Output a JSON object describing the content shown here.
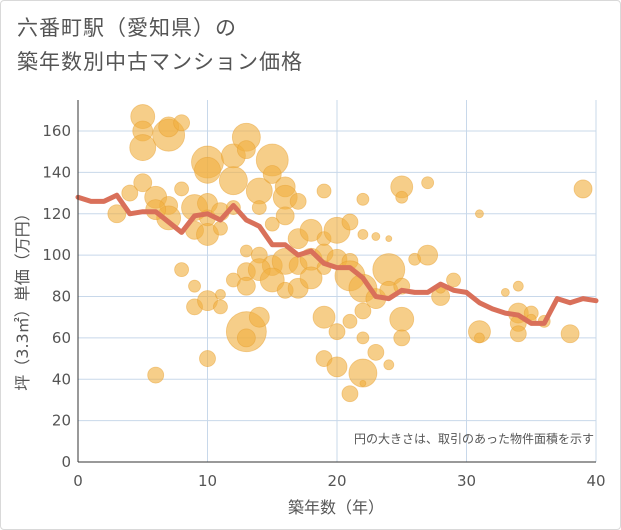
{
  "title_line1": "六番町駅（愛知県）の",
  "title_line2": "築年数別中古マンション価格",
  "chart_data": {
    "type": "scatter",
    "xlabel": "築年数（年）",
    "ylabel": "坪（3.3㎡）単価（万円）",
    "xlim": [
      0,
      40
    ],
    "ylim": [
      0,
      175
    ],
    "xticks": [
      "0",
      "10",
      "20",
      "30",
      "40"
    ],
    "yticks": [
      "0",
      "20",
      "40",
      "60",
      "80",
      "100",
      "120",
      "140",
      "160"
    ],
    "grid": true,
    "annotation": "円の大きさは、取引のあった物件面積を示す",
    "colors": {
      "bubble": "#f0b040",
      "line": "#d9705a",
      "grid": "#c8d8ea"
    },
    "bubbles": [
      [
        5,
        167,
        12
      ],
      [
        5,
        160,
        10
      ],
      [
        5,
        152,
        13
      ],
      [
        7,
        158,
        16
      ],
      [
        7,
        162,
        10
      ],
      [
        8,
        164,
        8
      ],
      [
        4,
        130,
        8
      ],
      [
        5,
        135,
        9
      ],
      [
        6,
        128,
        11
      ],
      [
        7,
        124,
        9
      ],
      [
        7,
        118,
        12
      ],
      [
        8,
        132,
        7
      ],
      [
        9,
        123,
        13
      ],
      [
        9,
        112,
        9
      ],
      [
        10,
        145,
        16
      ],
      [
        10,
        141,
        13
      ],
      [
        10,
        125,
        10
      ],
      [
        10,
        118,
        8
      ],
      [
        11,
        121,
        9
      ],
      [
        10,
        110,
        11
      ],
      [
        11,
        113,
        7
      ],
      [
        12,
        148,
        12
      ],
      [
        12,
        136,
        14
      ],
      [
        12,
        123,
        7
      ],
      [
        13,
        157,
        14
      ],
      [
        13,
        151,
        9
      ],
      [
        14,
        131,
        13
      ],
      [
        14,
        123,
        7
      ],
      [
        15,
        146,
        16
      ],
      [
        15,
        139,
        9
      ],
      [
        16,
        133,
        10
      ],
      [
        16,
        128,
        12
      ],
      [
        16,
        119,
        9
      ],
      [
        15,
        115,
        7
      ],
      [
        17,
        126,
        8
      ],
      [
        17,
        108,
        10
      ],
      [
        3,
        120,
        9
      ],
      [
        6,
        122,
        10
      ],
      [
        18,
        112,
        11
      ],
      [
        19,
        108,
        7
      ],
      [
        13,
        102,
        6
      ],
      [
        14,
        100,
        8
      ],
      [
        15,
        95,
        10
      ],
      [
        16,
        97,
        13
      ],
      [
        17,
        95,
        9
      ],
      [
        18,
        98,
        11
      ],
      [
        19,
        101,
        9
      ],
      [
        20,
        98,
        10
      ],
      [
        21,
        97,
        8
      ],
      [
        20,
        112,
        13
      ],
      [
        21,
        116,
        8
      ],
      [
        19,
        131,
        7
      ],
      [
        22,
        127,
        6
      ],
      [
        22,
        110,
        5
      ],
      [
        13,
        92,
        9
      ],
      [
        14,
        93,
        11
      ],
      [
        15,
        88,
        12
      ],
      [
        12,
        88,
        7
      ],
      [
        13,
        85,
        9
      ],
      [
        16,
        83,
        8
      ],
      [
        17,
        84,
        10
      ],
      [
        18,
        89,
        11
      ],
      [
        19,
        94,
        7
      ],
      [
        21,
        90,
        15
      ],
      [
        22,
        84,
        14
      ],
      [
        22,
        73,
        8
      ],
      [
        23,
        79,
        10
      ],
      [
        24,
        93,
        16
      ],
      [
        24,
        83,
        9
      ],
      [
        25,
        85,
        8
      ],
      [
        25,
        69,
        12
      ],
      [
        25,
        60,
        8
      ],
      [
        26,
        98,
        6
      ],
      [
        27,
        100,
        10
      ],
      [
        28,
        80,
        9
      ],
      [
        29,
        88,
        7
      ],
      [
        28,
        84,
        5
      ],
      [
        8,
        93,
        7
      ],
      [
        9,
        85,
        6
      ],
      [
        9,
        75,
        8
      ],
      [
        10,
        78,
        10
      ],
      [
        11,
        81,
        5
      ],
      [
        11,
        75,
        7
      ],
      [
        13,
        63,
        20
      ],
      [
        13,
        60,
        9
      ],
      [
        14,
        70,
        10
      ],
      [
        10,
        50,
        8
      ],
      [
        6,
        42,
        8
      ],
      [
        19,
        70,
        11
      ],
      [
        20,
        63,
        8
      ],
      [
        21,
        68,
        7
      ],
      [
        22,
        60,
        6
      ],
      [
        19,
        50,
        8
      ],
      [
        20,
        46,
        10
      ],
      [
        22,
        43,
        14
      ],
      [
        21,
        33,
        8
      ],
      [
        23,
        53,
        8
      ],
      [
        24,
        47,
        5
      ],
      [
        22,
        38,
        3
      ],
      [
        25,
        133,
        11
      ],
      [
        25,
        128,
        6
      ],
      [
        27,
        135,
        6
      ],
      [
        31,
        63,
        11
      ],
      [
        31,
        60,
        5
      ],
      [
        31,
        120,
        4
      ],
      [
        33,
        82,
        4
      ],
      [
        34,
        72,
        10
      ],
      [
        34,
        67,
        8
      ],
      [
        34,
        62,
        8
      ],
      [
        34,
        85,
        5
      ],
      [
        35,
        72,
        7
      ],
      [
        35,
        69,
        5
      ],
      [
        36,
        68,
        6
      ],
      [
        38,
        62,
        9
      ],
      [
        39,
        132,
        9
      ],
      [
        23,
        109,
        4
      ],
      [
        24,
        108,
        3
      ]
    ],
    "line": {
      "x": [
        0,
        1,
        2,
        3,
        4,
        5,
        6,
        7,
        8,
        9,
        10,
        11,
        12,
        13,
        14,
        15,
        16,
        17,
        18,
        19,
        20,
        21,
        22,
        23,
        24,
        25,
        26,
        27,
        28,
        29,
        30,
        31,
        32,
        33,
        34,
        35,
        36,
        37,
        38,
        39,
        40
      ],
      "y": [
        128,
        126,
        126,
        129,
        120,
        121,
        121,
        116,
        111,
        119,
        120,
        117,
        124,
        117,
        114,
        105,
        105,
        100,
        102,
        96,
        94,
        94,
        89,
        80,
        79,
        83,
        82,
        82,
        86,
        83,
        82,
        77,
        74,
        72,
        71,
        67,
        67,
        79,
        77,
        79,
        78
      ]
    }
  }
}
